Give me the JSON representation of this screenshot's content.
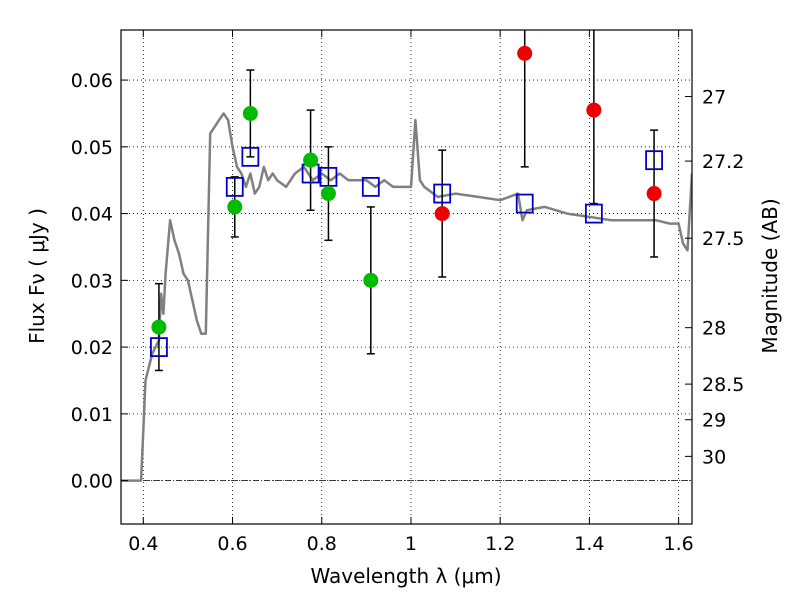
{
  "chart_data": {
    "type": "scatter",
    "xlabel": "Wavelength  λ (μm)",
    "ylabel": "Flux  Fν  ( μJy )",
    "y2label": "Magnitude (AB)",
    "xlim": [
      0.35,
      1.63
    ],
    "ylim": [
      -0.0065,
      0.0675
    ],
    "xticks": [
      0.4,
      0.6,
      0.8,
      1.0,
      1.2,
      1.4,
      1.6
    ],
    "xtick_labels": [
      "0.4",
      "0.6",
      "0.8",
      "1",
      "1.2",
      "1.4",
      "1.6"
    ],
    "yticks": [
      0.0,
      0.01,
      0.02,
      0.03,
      0.04,
      0.05,
      0.06
    ],
    "ytick_labels": [
      "0.00",
      "0.01",
      "0.02",
      "0.03",
      "0.04",
      "0.05",
      "0.06"
    ],
    "mag_ticks": [
      27,
      27.2,
      27.5,
      28,
      28.5,
      29,
      30
    ],
    "mag_tick_labels": [
      "27",
      "27.2",
      "27.5",
      "28",
      "28.5",
      "29",
      "30"
    ],
    "grid": true,
    "colors": {
      "model": "#808080",
      "model_points": "#0000cc",
      "detected": "#00bb00",
      "undetected": "#ee0000",
      "errorbar": "#000000"
    },
    "series": [
      {
        "kind": "model_spectrum",
        "x": [
          0.35,
          0.38,
          0.395,
          0.405,
          0.42,
          0.435,
          0.44,
          0.445,
          0.45,
          0.46,
          0.47,
          0.48,
          0.49,
          0.5,
          0.51,
          0.52,
          0.53,
          0.54,
          0.55,
          0.56,
          0.57,
          0.58,
          0.59,
          0.6,
          0.61,
          0.62,
          0.63,
          0.64,
          0.65,
          0.66,
          0.67,
          0.68,
          0.69,
          0.7,
          0.72,
          0.74,
          0.76,
          0.78,
          0.8,
          0.82,
          0.84,
          0.86,
          0.88,
          0.9,
          0.92,
          0.94,
          0.96,
          0.98,
          1.0,
          1.01,
          1.02,
          1.03,
          1.06,
          1.1,
          1.15,
          1.2,
          1.22,
          1.24,
          1.25,
          1.26,
          1.3,
          1.35,
          1.4,
          1.45,
          1.5,
          1.55,
          1.58,
          1.6,
          1.61,
          1.62,
          1.63
        ],
        "y": [
          0.0,
          0.0,
          0.0,
          0.015,
          0.019,
          0.021,
          0.028,
          0.025,
          0.031,
          0.039,
          0.036,
          0.034,
          0.031,
          0.03,
          0.027,
          0.024,
          0.022,
          0.022,
          0.052,
          0.053,
          0.054,
          0.055,
          0.054,
          0.05,
          0.047,
          0.046,
          0.044,
          0.046,
          0.043,
          0.044,
          0.047,
          0.045,
          0.046,
          0.045,
          0.044,
          0.046,
          0.047,
          0.045,
          0.046,
          0.045,
          0.046,
          0.045,
          0.045,
          0.045,
          0.044,
          0.045,
          0.044,
          0.044,
          0.044,
          0.054,
          0.045,
          0.044,
          0.0425,
          0.043,
          0.0425,
          0.042,
          0.0425,
          0.043,
          0.039,
          0.0405,
          0.041,
          0.04,
          0.0395,
          0.039,
          0.039,
          0.039,
          0.0385,
          0.0385,
          0.0355,
          0.0345,
          0.046
        ]
      },
      {
        "kind": "model_points",
        "marker": "open-square",
        "x": [
          0.435,
          0.605,
          0.64,
          0.775,
          0.815,
          0.91,
          1.07,
          1.255,
          1.41,
          1.545
        ],
        "y": [
          0.02,
          0.044,
          0.0485,
          0.046,
          0.0455,
          0.044,
          0.043,
          0.0415,
          0.04,
          0.048
        ]
      },
      {
        "kind": "detected",
        "marker": "filled-circle",
        "x": [
          0.435,
          0.605,
          0.64,
          0.775,
          0.815,
          0.91
        ],
        "y": [
          0.023,
          0.041,
          0.055,
          0.048,
          0.043,
          0.03
        ],
        "yerr": [
          0.0065,
          0.0045,
          0.0065,
          0.0075,
          0.007,
          0.011
        ]
      },
      {
        "kind": "undetected",
        "marker": "filled-circle",
        "x": [
          1.07,
          1.255,
          1.41,
          1.545
        ],
        "y": [
          0.04,
          0.064,
          0.0555,
          0.043
        ],
        "yerr": [
          0.0095,
          0.017,
          0.014,
          0.0095
        ]
      }
    ]
  }
}
